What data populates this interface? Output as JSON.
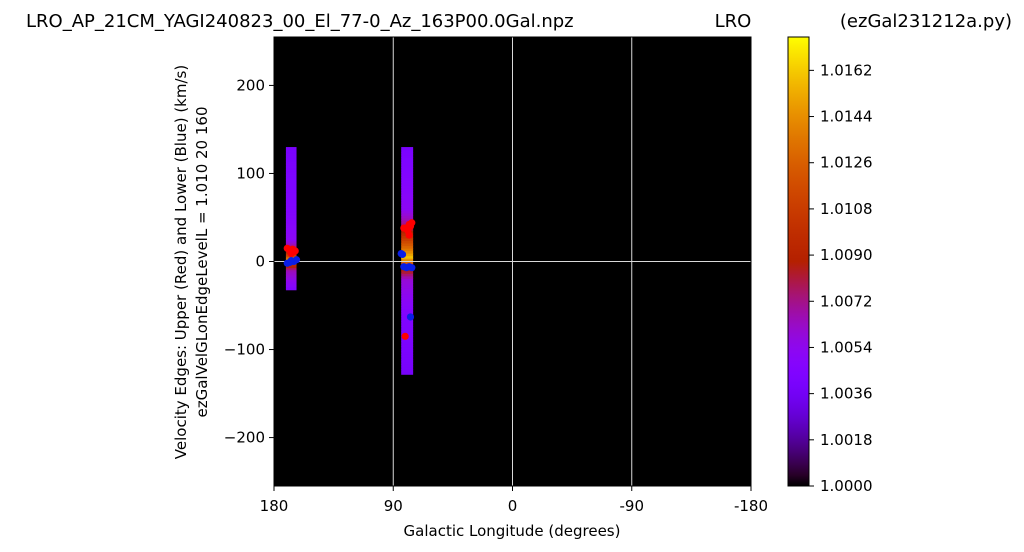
{
  "chart_data": {
    "type": "heatmap",
    "title": {
      "left": "LRO_AP_21CM_YAGI240823_00_El_77-0_Az_163P00.0Gal.npz",
      "center": "LRO",
      "right": "(ezGal231212a.py)"
    },
    "xlabel": "Galactic Longitude (degrees)",
    "ylabel_line1": "Velocity Edges: Upper (Red) and Lower (Blue) (km/s)",
    "ylabel_line2": "ezGalVelGLonEdgeLevelL = 1.010  20  160",
    "x_reversed": true,
    "xlim": [
      180,
      -180
    ],
    "ylim": [
      -255,
      255
    ],
    "x_ticks": [
      180,
      90,
      0,
      -90,
      -180
    ],
    "x_tick_labels": [
      "180",
      "90",
      "0",
      "-90",
      "-180"
    ],
    "y_ticks": [
      200,
      100,
      0,
      -100,
      -200
    ],
    "y_tick_labels": [
      "200",
      "100",
      "0",
      "−100",
      "−200"
    ],
    "grid": true,
    "colorbar": {
      "colormap": "gnuplot",
      "range": [
        1.0,
        1.0175
      ],
      "ticks": [
        1.0162,
        1.0144,
        1.0126,
        1.0108,
        1.009,
        1.0072,
        1.0054,
        1.0036,
        1.0018,
        1.0
      ],
      "tick_labels": [
        "1.0162",
        "1.0144",
        "1.0126",
        "1.0108",
        "1.0090",
        "1.0072",
        "1.0054",
        "1.0036",
        "1.0018",
        "1.0000"
      ]
    },
    "background_value": 1.0,
    "strips": [
      {
        "glon": 167,
        "glon_min": 163,
        "glon_max": 171,
        "vel_min": -32,
        "vel_max": 130,
        "profile": [
          [
            -32,
            1.0045
          ],
          [
            -10,
            1.0065
          ],
          [
            -3,
            1.01
          ],
          [
            2,
            1.015
          ],
          [
            6,
            1.012
          ],
          [
            12,
            1.0085
          ],
          [
            25,
            1.0052
          ],
          [
            60,
            1.0045
          ],
          [
            100,
            1.0042
          ],
          [
            130,
            1.004
          ]
        ]
      },
      {
        "glon": 79,
        "glon_min": 75,
        "glon_max": 84,
        "vel_min": -128,
        "vel_max": 130,
        "profile": [
          [
            -128,
            1.0038
          ],
          [
            -60,
            1.0045
          ],
          [
            -20,
            1.006
          ],
          [
            -5,
            1.01
          ],
          [
            5,
            1.016
          ],
          [
            12,
            1.014
          ],
          [
            25,
            1.011
          ],
          [
            40,
            1.0075
          ],
          [
            60,
            1.0052
          ],
          [
            130,
            1.004
          ]
        ]
      }
    ],
    "upper_edges": {
      "name": "Upper (Red)",
      "color": "#ff0000",
      "points": [
        [
          170,
          15
        ],
        [
          168,
          13
        ],
        [
          166,
          14
        ],
        [
          165,
          11
        ],
        [
          167,
          9
        ],
        [
          164,
          12
        ],
        [
          78,
          42
        ],
        [
          77,
          40
        ],
        [
          80,
          38
        ],
        [
          76,
          44
        ],
        [
          79,
          35
        ],
        [
          82,
          38
        ],
        [
          78,
          30
        ],
        [
          81,
          -85
        ]
      ]
    },
    "lower_edges": {
      "name": "Lower (Blue)",
      "color": "#0a1ee6",
      "points": [
        [
          170,
          -2
        ],
        [
          167,
          1
        ],
        [
          165,
          0
        ],
        [
          163,
          2
        ],
        [
          168,
          -1
        ],
        [
          84,
          9
        ],
        [
          83,
          8
        ],
        [
          82,
          -6
        ],
        [
          80,
          -7
        ],
        [
          78,
          -6
        ],
        [
          76,
          -7
        ],
        [
          77,
          -63
        ]
      ]
    }
  }
}
